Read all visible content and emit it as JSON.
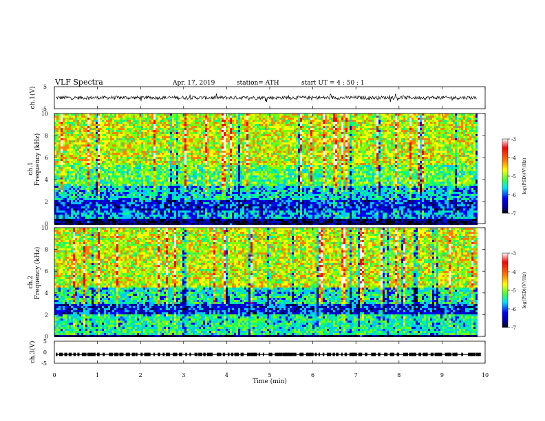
{
  "header": {
    "title": "VLF  Spectra",
    "date": "Apr. 17, 2019",
    "station": "station= ATH",
    "start": "start  UT  =    4  : 50 : 1"
  },
  "colors": {
    "background": "#ffffff",
    "axes": "#000000",
    "colormap": [
      "#000000",
      "#0000a0",
      "#0000ff",
      "#00c8ff",
      "#00ff80",
      "#80ff00",
      "#ffff00",
      "#ff8000",
      "#ff0000",
      "#ffffff"
    ]
  },
  "chart_data": [
    {
      "type": "line",
      "panel": "ch1-waveform",
      "ylabel": "ch.1(V)",
      "ylim": [
        -5,
        5
      ],
      "ytick_labels": [
        "5",
        "-5"
      ],
      "xlim": [
        0,
        10
      ],
      "series": [
        {
          "values_summary": "noisy trace centered near 0 V with amplitude about ±1 V, spikes to ±2 V",
          "x_end_min": 9.8
        }
      ]
    },
    {
      "type": "heatmap",
      "panel": "ch1-spectrogram",
      "ylabel": "Frequency (kHz)",
      "channel_label": "ch.1",
      "xlim": [
        0,
        9.8
      ],
      "ylim": [
        0,
        10
      ],
      "ytick_labels": [
        "0",
        "2",
        "4",
        "6",
        "8",
        "10"
      ],
      "colorbar": {
        "label": "log(PSD)(V²/Hz)",
        "range": [
          -7,
          -3
        ],
        "tick_labels": [
          "-3",
          "-4",
          "-5",
          "-6",
          "-7"
        ]
      },
      "bands": [
        {
          "from_khz": 0,
          "to_khz": 0.6,
          "level": -6.8
        },
        {
          "from_khz": 0.6,
          "to_khz": 1.2,
          "level": -5.8
        },
        {
          "from_khz": 1.2,
          "to_khz": 2.3,
          "level": -6.2
        },
        {
          "from_khz": 2.3,
          "to_khz": 3.5,
          "level": -5.6
        },
        {
          "from_khz": 3.5,
          "to_khz": 5.5,
          "level": -5.0
        },
        {
          "from_khz": 5.5,
          "to_khz": 10,
          "level": -4.5
        }
      ]
    },
    {
      "type": "heatmap",
      "panel": "ch2-spectrogram",
      "ylabel": "Frequency (kHz)",
      "channel_label": "ch.2",
      "xlim": [
        0,
        9.8
      ],
      "ylim": [
        0,
        10
      ],
      "ytick_labels": [
        "0",
        "2",
        "4",
        "6",
        "8",
        "10"
      ],
      "colorbar": {
        "label": "log(PSD)(V²/Hz)",
        "range": [
          -7,
          -3
        ],
        "tick_labels": [
          "-3",
          "-4",
          "-5",
          "-6",
          "-7"
        ]
      },
      "bands": [
        {
          "from_khz": 0,
          "to_khz": 0.3,
          "level": -6.8
        },
        {
          "from_khz": 0.3,
          "to_khz": 2.2,
          "level": -5.3
        },
        {
          "from_khz": 2.2,
          "to_khz": 3.0,
          "level": -6.2
        },
        {
          "from_khz": 3.0,
          "to_khz": 4.5,
          "level": -5.4
        },
        {
          "from_khz": 4.5,
          "to_khz": 10,
          "level": -4.5
        }
      ]
    },
    {
      "type": "line",
      "panel": "ch3-waveform",
      "ylabel": "ch.3(V)",
      "ylim": [
        -5,
        5
      ],
      "ytick_labels": [
        "5",
        "0",
        "-5"
      ],
      "xlim": [
        0,
        10
      ],
      "xlabel": "Time  (min)",
      "xtick_labels": [
        "0",
        "1",
        "2",
        "3",
        "4",
        "5",
        "6",
        "7",
        "8",
        "9",
        "10"
      ],
      "series": [
        {
          "values_summary": "flat line near -1 V with dashed pulse segments",
          "level_v": -1,
          "x_end_min": 9.8
        }
      ]
    }
  ]
}
